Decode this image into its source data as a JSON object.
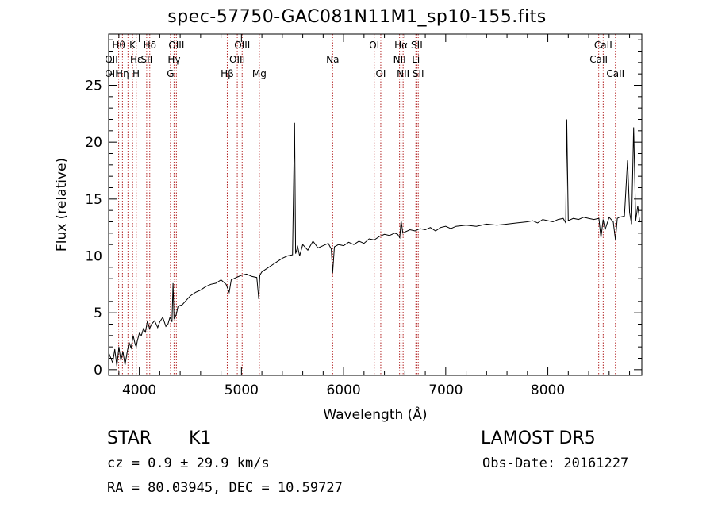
{
  "chart_data": {
    "type": "line",
    "title": "spec-57750-GAC081N11M1_sp10-155.fits",
    "xlabel": "Wavelength (Å)",
    "ylabel": "Flux (relative)",
    "xlim": [
      3700,
      8920
    ],
    "ylim": [
      -0.5,
      29.5
    ],
    "xticks": [
      4000,
      5000,
      6000,
      7000,
      8000
    ],
    "yticks": [
      0,
      5,
      10,
      15,
      20,
      25
    ],
    "grid": false,
    "line_color": "#000000",
    "marker_color": "#b22222",
    "series": [
      {
        "x": [
          3700,
          3740,
          3760,
          3780,
          3800,
          3820,
          3840,
          3860,
          3880,
          3900,
          3920,
          3940,
          3960,
          3970,
          3980,
          4000,
          4020,
          4040,
          4060,
          4080,
          4100,
          4120,
          4150,
          4180,
          4200,
          4230,
          4260,
          4280,
          4300,
          4320,
          4330,
          4340,
          4360,
          4380,
          4420,
          4460,
          4500,
          4550,
          4600,
          4650,
          4700,
          4750,
          4800,
          4850,
          4880,
          4900,
          4950,
          5000,
          5050,
          5100,
          5150,
          5170,
          5180,
          5200,
          5250,
          5300,
          5350,
          5400,
          5450,
          5500,
          5520,
          5530,
          5550,
          5570,
          5600,
          5650,
          5700,
          5750,
          5800,
          5850,
          5880,
          5893,
          5910,
          5950,
          6000,
          6050,
          6100,
          6150,
          6200,
          6250,
          6300,
          6350,
          6400,
          6450,
          6500,
          6530,
          6550,
          6563,
          6580,
          6600,
          6650,
          6700,
          6750,
          6800,
          6850,
          6900,
          6950,
          7000,
          7050,
          7100,
          7200,
          7300,
          7400,
          7500,
          7600,
          7700,
          7800,
          7850,
          7900,
          7950,
          8000,
          8050,
          8100,
          8150,
          8175,
          8185,
          8200,
          8250,
          8300,
          8350,
          8400,
          8450,
          8500,
          8520,
          8542,
          8560,
          8600,
          8640,
          8662,
          8680,
          8700,
          8750,
          8780,
          8800,
          8820,
          8840,
          8860,
          8880,
          8900,
          8920
        ],
        "y": [
          1.5,
          0.6,
          1.8,
          0.3,
          2.0,
          0.8,
          1.6,
          0.4,
          1.5,
          2.4,
          1.9,
          3.0,
          2.2,
          2.0,
          2.5,
          3.2,
          3.0,
          3.6,
          3.3,
          4.3,
          3.6,
          4.0,
          4.3,
          3.7,
          4.2,
          4.6,
          3.8,
          4.0,
          4.6,
          4.2,
          7.6,
          4.5,
          4.8,
          5.6,
          5.7,
          6.1,
          6.5,
          6.8,
          7.0,
          7.3,
          7.5,
          7.6,
          7.9,
          7.5,
          6.8,
          7.9,
          8.1,
          8.3,
          8.4,
          8.2,
          8.1,
          6.2,
          8.3,
          8.6,
          8.9,
          9.2,
          9.5,
          9.8,
          10.0,
          10.1,
          21.7,
          10.2,
          10.8,
          10.0,
          11.0,
          10.5,
          11.3,
          10.7,
          10.9,
          11.1,
          10.6,
          8.5,
          10.8,
          11.0,
          10.9,
          11.2,
          11.0,
          11.3,
          11.1,
          11.5,
          11.4,
          11.7,
          11.9,
          11.8,
          12.0,
          11.9,
          11.6,
          13.1,
          12.0,
          12.1,
          12.3,
          12.2,
          12.4,
          12.3,
          12.5,
          12.2,
          12.5,
          12.6,
          12.4,
          12.6,
          12.7,
          12.6,
          12.8,
          12.7,
          12.8,
          12.9,
          13.0,
          13.1,
          12.9,
          13.2,
          13.1,
          13.0,
          13.2,
          13.3,
          12.9,
          22.0,
          13.1,
          13.3,
          13.2,
          13.4,
          13.3,
          13.2,
          13.3,
          11.6,
          13.2,
          12.3,
          13.4,
          13.0,
          11.4,
          13.3,
          13.4,
          13.5,
          18.4,
          13.8,
          12.8,
          21.3,
          13.1,
          14.4,
          13.0,
          13.1
        ]
      }
    ],
    "lines_top": [
      {
        "label": "Hθ",
        "x": 3798,
        "row": 0
      },
      {
        "label": "K",
        "x": 3934,
        "row": 0
      },
      {
        "label": "Hδ",
        "x": 4102,
        "row": 0
      },
      {
        "label": "OIII",
        "x": 4363,
        "row": 0
      },
      {
        "label": "OIII",
        "x": 5007,
        "row": 0
      },
      {
        "label": "OI",
        "x": 6300,
        "row": 0
      },
      {
        "label": "Hα",
        "x": 6563,
        "row": 0
      },
      {
        "label": "SII",
        "x": 6717,
        "row": 0
      },
      {
        "label": "CaII",
        "x": 8542,
        "row": 0
      },
      {
        "label": "OII",
        "x": 3727,
        "row": 1
      },
      {
        "label": "Hε",
        "x": 3970,
        "row": 1
      },
      {
        "label": "SII",
        "x": 4072,
        "row": 1
      },
      {
        "label": "Hγ",
        "x": 4340,
        "row": 1
      },
      {
        "label": "OIII",
        "x": 4959,
        "row": 1
      },
      {
        "label": "Na",
        "x": 5893,
        "row": 1
      },
      {
        "label": "NII",
        "x": 6548,
        "row": 1
      },
      {
        "label": "Li",
        "x": 6708,
        "row": 1
      },
      {
        "label": "CaII",
        "x": 8498,
        "row": 1
      },
      {
        "label": "OII",
        "x": 3727,
        "row": 2
      },
      {
        "label": "Hη",
        "x": 3835,
        "row": 2
      },
      {
        "label": "H",
        "x": 3968,
        "row": 2
      },
      {
        "label": "G",
        "x": 4305,
        "row": 2
      },
      {
        "label": "Hβ",
        "x": 4861,
        "row": 2
      },
      {
        "label": "Mg",
        "x": 5175,
        "row": 2
      },
      {
        "label": "OI",
        "x": 6364,
        "row": 2
      },
      {
        "label": "NII",
        "x": 6583,
        "row": 2
      },
      {
        "label": "SII",
        "x": 6731,
        "row": 2
      },
      {
        "label": "CaII",
        "x": 8662,
        "row": 2
      }
    ],
    "marker_wavelengths": [
      3798,
      3835,
      3889,
      3934,
      3970,
      4072,
      4102,
      4305,
      4340,
      4363,
      4861,
      4959,
      5007,
      5175,
      5893,
      6300,
      6364,
      6548,
      6563,
      6583,
      6708,
      6717,
      6731,
      8498,
      8542,
      8662
    ]
  },
  "info": {
    "class": "STAR",
    "subclass": "K1",
    "survey": "LAMOST DR5",
    "redshift": "cz = 0.9 ± 29.9 km/s",
    "obs_date": "Obs-Date: 20161227",
    "coords": "RA =  80.03945, DEC =  10.59727"
  }
}
